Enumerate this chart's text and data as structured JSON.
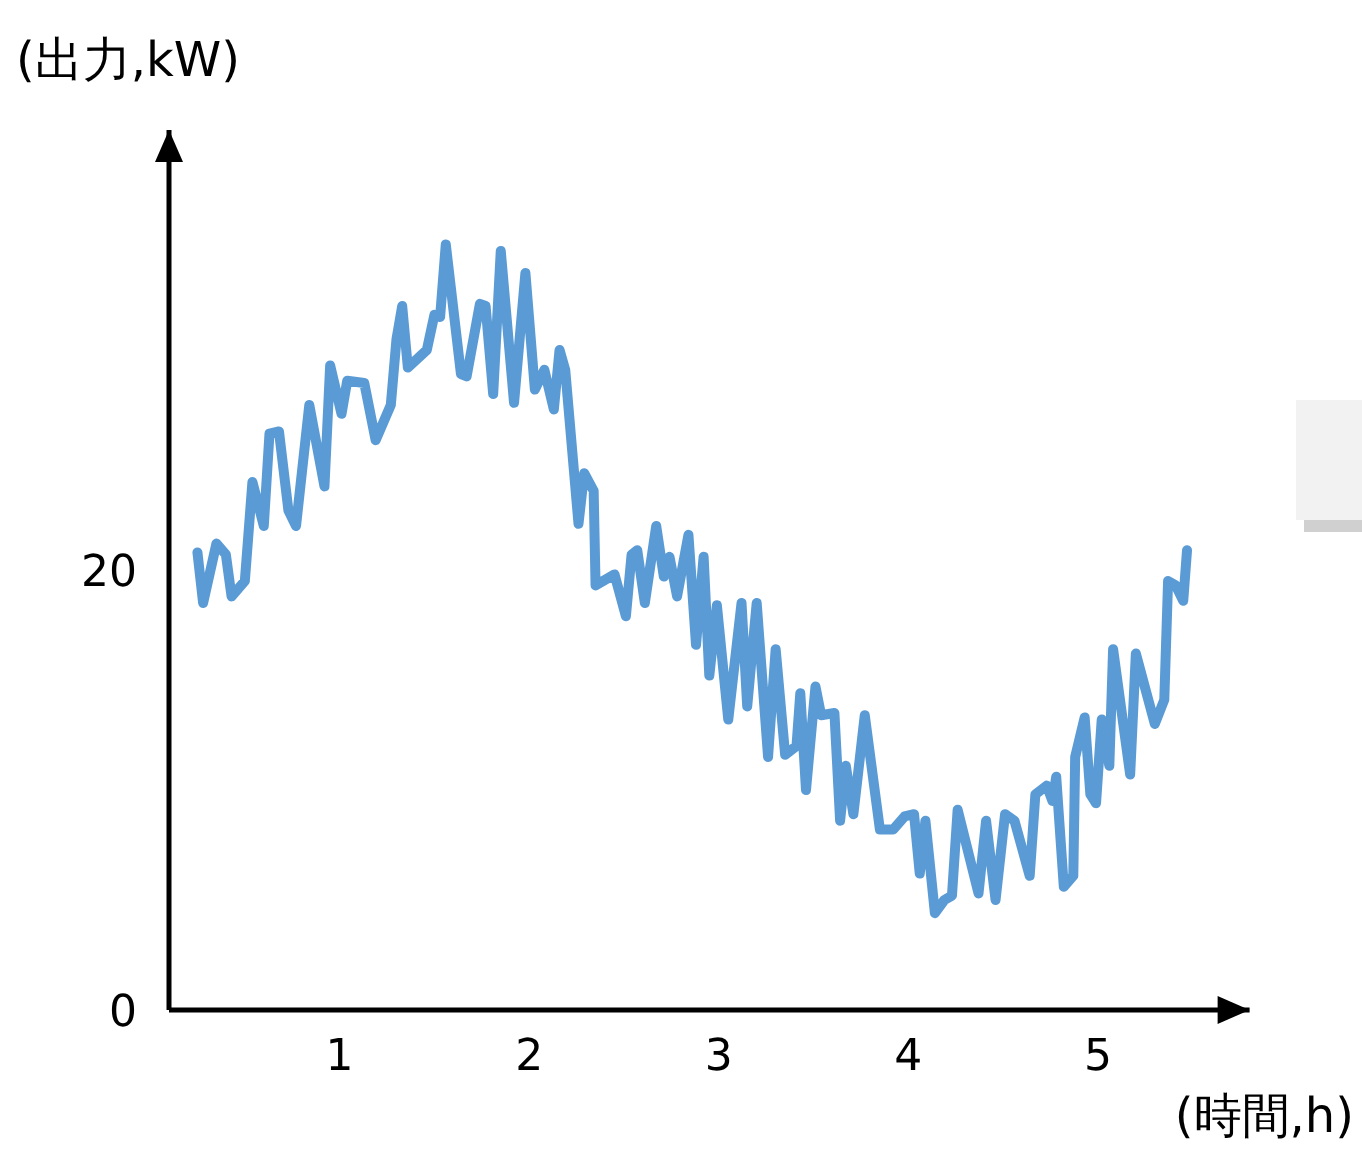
{
  "chart_data": {
    "type": "line",
    "xlabel": "(時間,h)",
    "ylabel": "(出力,kW)",
    "xlim": [
      0.1,
      5.8
    ],
    "ylim": [
      0,
      40
    ],
    "xticks": [
      1,
      2,
      3,
      4,
      5
    ],
    "yticks": [
      0,
      20
    ],
    "marker": "none",
    "line_style": "solid",
    "series": [
      {
        "color": "#5b9bd5",
        "x": [
          0.25,
          0.28,
          0.35,
          0.4,
          0.43,
          0.5,
          0.54,
          0.6,
          0.63,
          0.68,
          0.73,
          0.77,
          0.84,
          0.92,
          0.95,
          1.01,
          1.04,
          1.13,
          1.19,
          1.27,
          1.3,
          1.33,
          1.36,
          1.46,
          1.5,
          1.53,
          1.56,
          1.64,
          1.67,
          1.74,
          1.77,
          1.81,
          1.85,
          1.92,
          1.98,
          2.03,
          2.08,
          2.13,
          2.16,
          2.19,
          2.26,
          2.29,
          2.34,
          2.35,
          2.45,
          2.51,
          2.54,
          2.57,
          2.61,
          2.67,
          2.71,
          2.74,
          2.78,
          2.84,
          2.88,
          2.92,
          2.95,
          2.99,
          3.05,
          3.12,
          3.15,
          3.2,
          3.26,
          3.3,
          3.35,
          3.41,
          3.43,
          3.46,
          3.51,
          3.54,
          3.61,
          3.64,
          3.67,
          3.71,
          3.77,
          3.85,
          3.92,
          3.98,
          4.03,
          4.06,
          4.09,
          4.14,
          4.19,
          4.23,
          4.26,
          4.37,
          4.41,
          4.46,
          4.51,
          4.56,
          4.64,
          4.67,
          4.73,
          4.76,
          4.78,
          4.82,
          4.87,
          4.88,
          4.93,
          4.96,
          4.99,
          5.02,
          5.06,
          5.08,
          5.17,
          5.2,
          5.3,
          5.35,
          5.37,
          5.41,
          5.45,
          5.47
        ],
        "values": [
          20.8,
          18.5,
          21.2,
          20.7,
          18.8,
          19.5,
          24.0,
          22.0,
          26.2,
          26.3,
          22.7,
          22.0,
          27.5,
          23.8,
          29.3,
          27.1,
          28.6,
          28.5,
          25.9,
          27.5,
          30.5,
          32.0,
          29.2,
          30.0,
          31.6,
          31.5,
          34.8,
          28.9,
          28.8,
          32.1,
          32.0,
          28.0,
          34.5,
          27.6,
          33.5,
          28.2,
          29.1,
          27.3,
          30.0,
          29.1,
          22.1,
          24.4,
          23.6,
          19.3,
          19.8,
          17.9,
          20.7,
          20.9,
          18.5,
          22.0,
          19.7,
          20.6,
          18.8,
          21.6,
          16.6,
          20.6,
          15.2,
          18.4,
          13.2,
          18.5,
          13.8,
          18.5,
          11.5,
          16.4,
          11.6,
          12.0,
          14.4,
          10.0,
          14.7,
          13.4,
          13.5,
          8.6,
          11.1,
          8.9,
          13.4,
          8.2,
          8.2,
          8.8,
          8.9,
          6.2,
          8.6,
          4.4,
          5.0,
          5.2,
          9.1,
          5.3,
          8.6,
          5.0,
          8.9,
          8.6,
          6.1,
          9.8,
          10.2,
          9.5,
          10.6,
          5.6,
          6.1,
          11.5,
          13.3,
          9.8,
          9.4,
          13.2,
          11.1,
          16.4,
          10.7,
          16.2,
          13.0,
          14.1,
          19.5,
          19.3,
          18.6,
          20.9
        ]
      }
    ]
  }
}
